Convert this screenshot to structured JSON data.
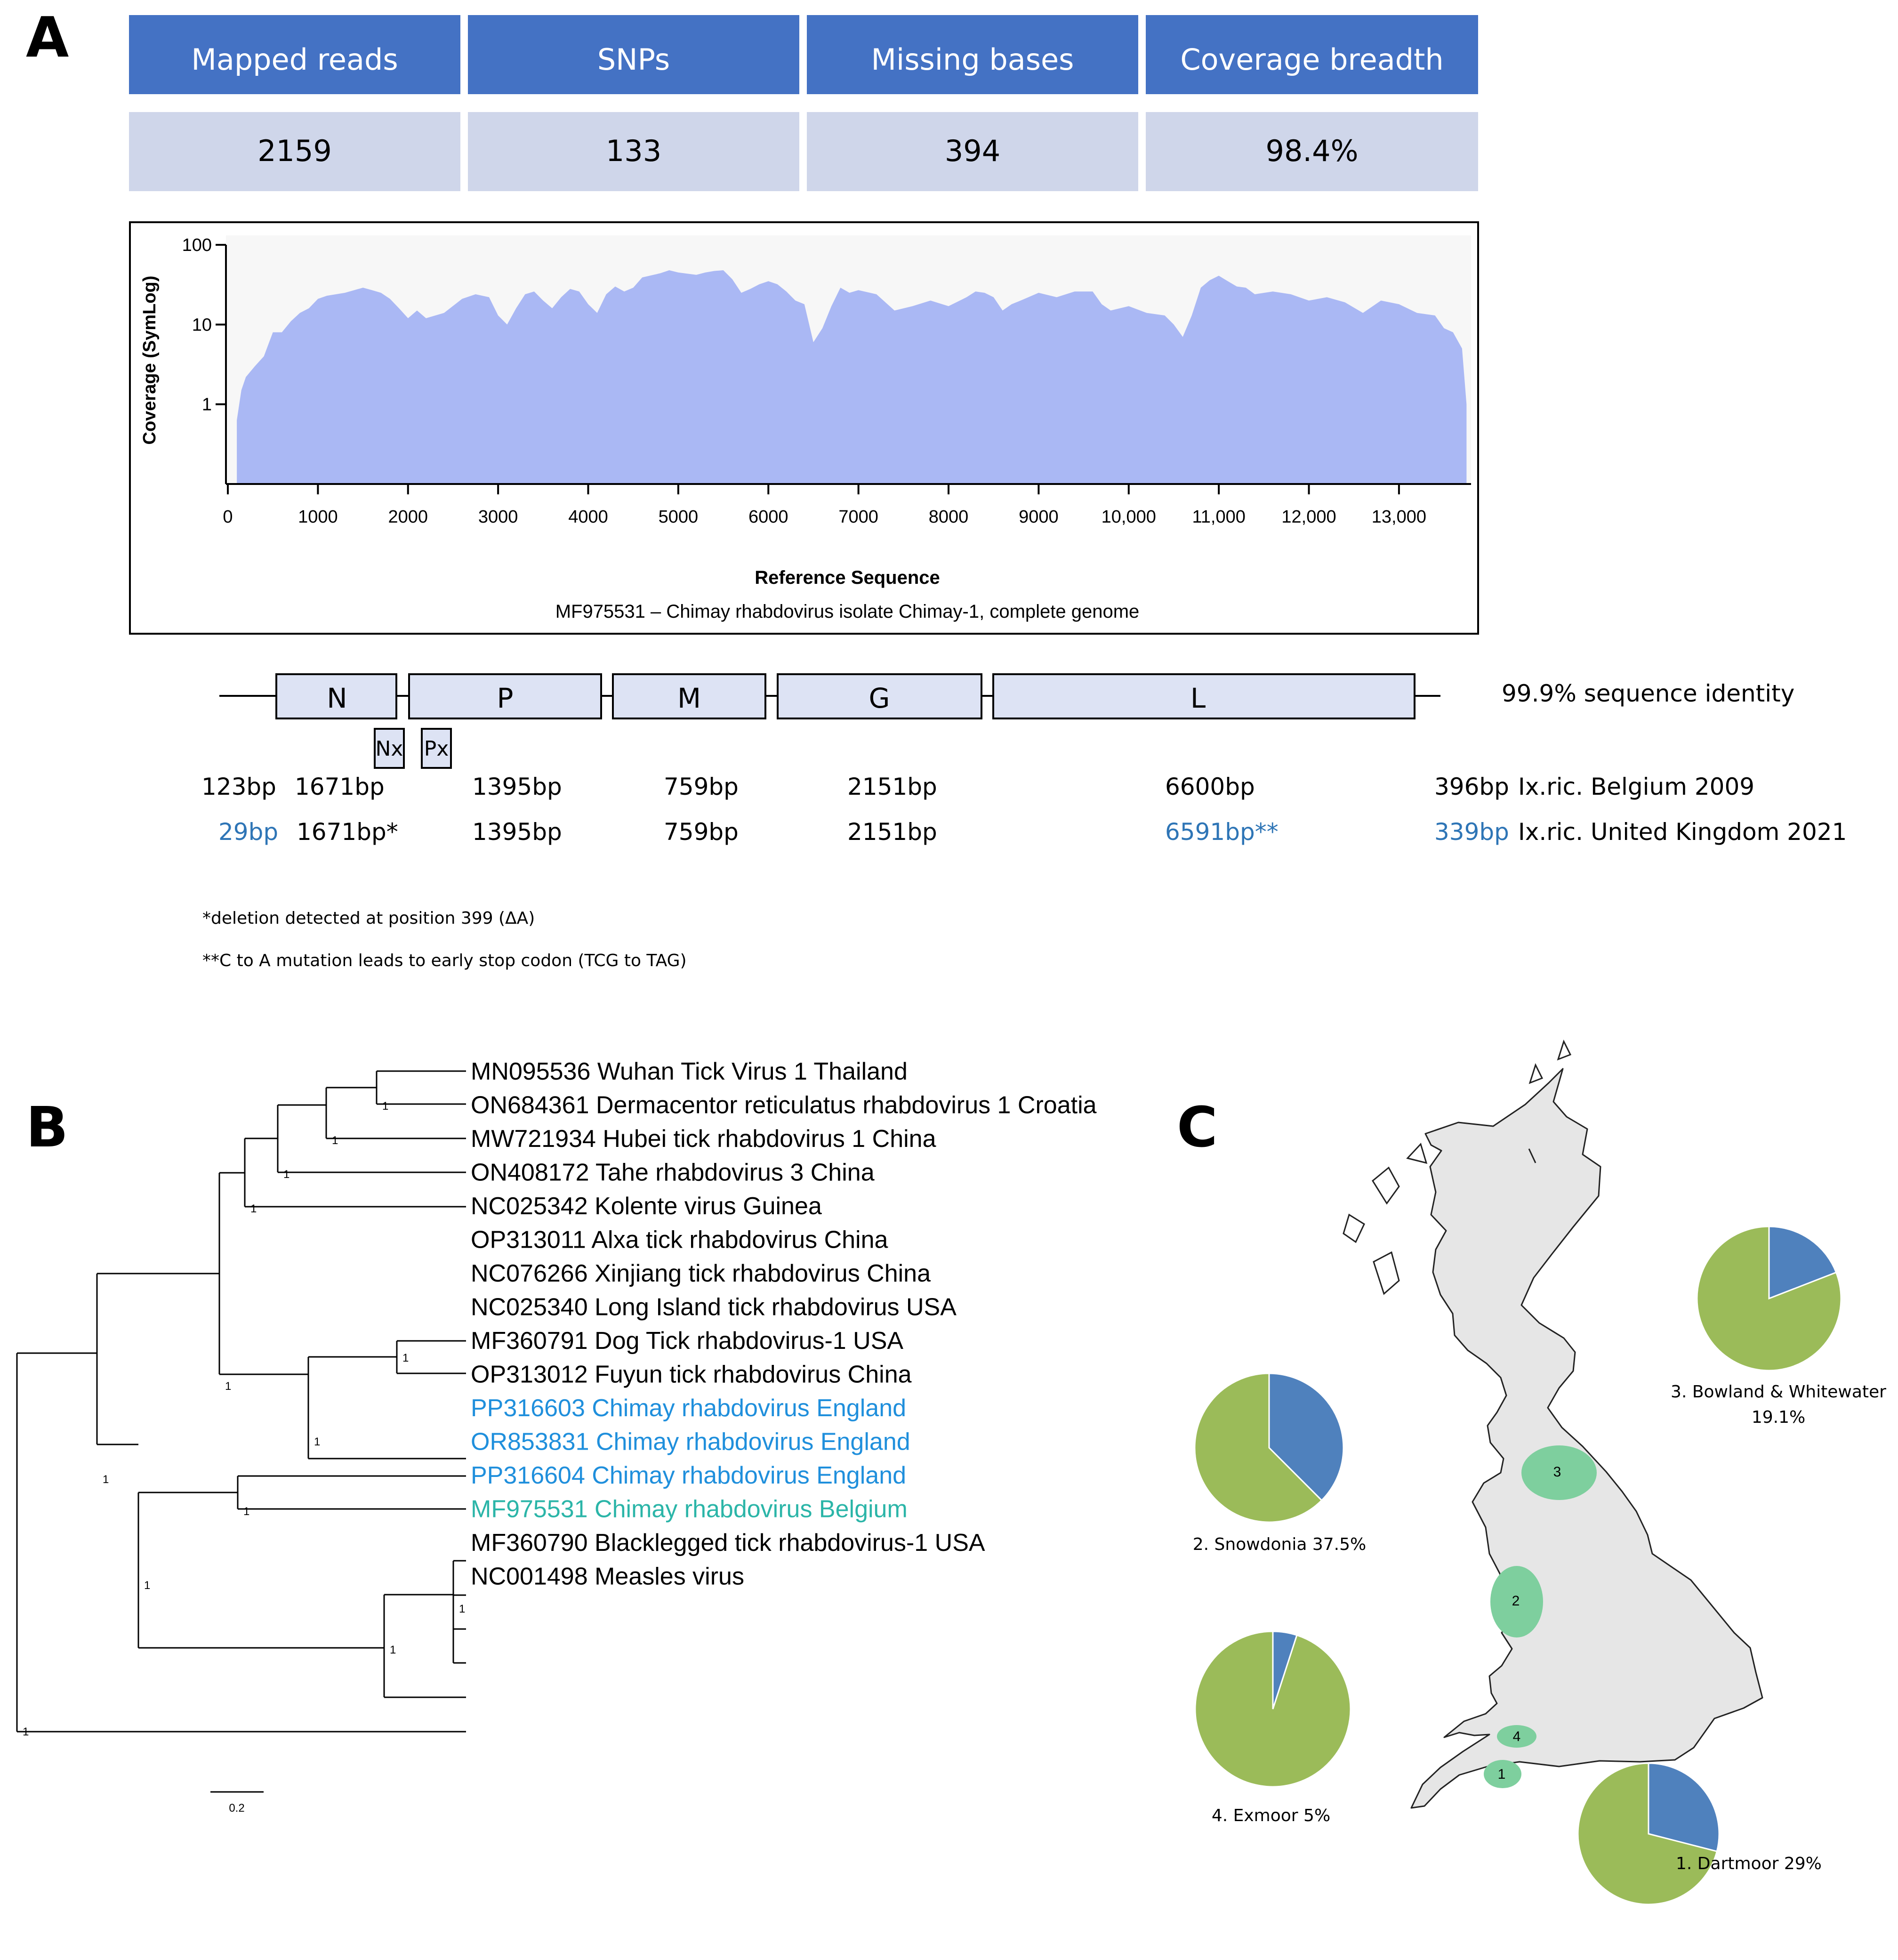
{
  "panels": {
    "a": "A",
    "b": "B",
    "c": "C"
  },
  "stats": {
    "headers": [
      "Mapped reads",
      "SNPs",
      "Missing bases",
      "Coverage breadth"
    ],
    "values": [
      "2159",
      "133",
      "394",
      "98.4%"
    ],
    "header_color": "#4472c4",
    "value_color": "#cfd6ea"
  },
  "chart_data": [
    {
      "type": "area",
      "title": "MF975531 – Chimay rhabdovirus isolate Chimay-1, complete genome",
      "xlabel": "Reference Sequence",
      "ylabel": "Coverage (SymLog)",
      "xlim": [
        0,
        13800
      ],
      "ylim": [
        0,
        100
      ],
      "yscale": "symlog",
      "xticks": [
        0,
        1000,
        2000,
        3000,
        4000,
        5000,
        6000,
        7000,
        8000,
        9000,
        10000,
        11000,
        12000,
        13000
      ],
      "xtick_labels": [
        "0",
        "1000",
        "2000",
        "3000",
        "4000",
        "5000",
        "6000",
        "7000",
        "8000",
        "9000",
        "10,000",
        "11,000",
        "12,000",
        "13,000"
      ],
      "yticks": [
        1,
        10,
        100
      ],
      "ytick_labels": [
        "1",
        "10",
        "100"
      ],
      "fill_color": "#aab8f4",
      "series": [
        {
          "name": "coverage",
          "x": [
            100,
            150,
            200,
            300,
            400,
            500,
            600,
            700,
            800,
            900,
            1000,
            1100,
            1300,
            1500,
            1600,
            1700,
            1800,
            1900,
            2000,
            2100,
            2200,
            2400,
            2600,
            2750,
            2900,
            3000,
            3100,
            3200,
            3300,
            3400,
            3500,
            3600,
            3700,
            3800,
            3900,
            4000,
            4100,
            4200,
            4300,
            4400,
            4500,
            4600,
            4800,
            4900,
            5000,
            5200,
            5300,
            5400,
            5500,
            5600,
            5700,
            5800,
            5900,
            6000,
            6100,
            6200,
            6300,
            6400,
            6500,
            6600,
            6700,
            6800,
            6900,
            7000,
            7200,
            7400,
            7600,
            7800,
            8000,
            8200,
            8300,
            8400,
            8500,
            8600,
            8700,
            8800,
            9000,
            9200,
            9400,
            9600,
            9700,
            9800,
            10000,
            10200,
            10400,
            10500,
            10600,
            10700,
            10800,
            10900,
            11000,
            11100,
            11200,
            11300,
            11400,
            11600,
            11800,
            12000,
            12200,
            12400,
            12600,
            12800,
            13000,
            13200,
            13400,
            13500,
            13600,
            13700,
            13750
          ],
          "values": [
            0.8,
            1.5,
            2.2,
            3,
            4,
            8,
            8,
            11,
            14,
            16,
            21,
            23,
            25,
            29,
            27,
            25,
            21,
            16,
            12,
            15,
            12,
            14,
            21,
            24,
            22,
            13,
            10,
            16,
            24,
            26,
            20,
            16,
            22,
            28,
            26,
            18,
            14,
            24,
            30,
            26,
            29,
            39,
            44,
            48,
            45,
            42,
            45,
            47,
            48,
            37,
            25,
            28,
            32,
            35,
            32,
            26,
            20,
            18,
            6,
            9,
            17,
            29,
            25,
            27,
            24,
            15,
            17,
            20,
            17,
            22,
            26,
            25,
            22,
            15,
            18,
            20,
            25,
            22,
            26,
            26,
            18,
            15,
            17,
            14,
            13,
            10,
            7,
            13,
            29,
            36,
            41,
            35,
            30,
            29,
            24,
            26,
            24,
            20,
            22,
            19,
            14,
            20,
            18,
            14,
            13,
            9,
            8,
            5,
            1
          ]
        }
      ]
    },
    {
      "type": "pie",
      "title": "1. Dartmoor 29%",
      "categories": [
        "positive",
        "negative"
      ],
      "values": [
        29,
        71
      ],
      "colors": [
        "#4f81bd",
        "#9bbb59"
      ]
    },
    {
      "type": "pie",
      "title": "2. Snowdonia 37.5%",
      "categories": [
        "positive",
        "negative"
      ],
      "values": [
        37.5,
        62.5
      ],
      "colors": [
        "#4f81bd",
        "#9bbb59"
      ]
    },
    {
      "type": "pie",
      "title": "3. Bowland & Whitewater 19.1%",
      "categories": [
        "positive",
        "negative"
      ],
      "values": [
        19.1,
        80.9
      ],
      "colors": [
        "#4f81bd",
        "#9bbb59"
      ]
    },
    {
      "type": "pie",
      "title": "4. Exmoor 5%",
      "categories": [
        "positive",
        "negative"
      ],
      "values": [
        5,
        95
      ],
      "colors": [
        "#4f81bd",
        "#9bbb59"
      ]
    }
  ],
  "coverage_box": {
    "xlabel": "Reference Sequence",
    "caption": "MF975531 – Chimay rhabdovirus isolate Chimay-1, complete genome"
  },
  "genome": {
    "genes": [
      "N",
      "P",
      "M",
      "G",
      "L"
    ],
    "small_genes": [
      "Nx",
      "Px"
    ],
    "identity": "99.9% sequence identity",
    "box_color": "#dde3f4",
    "row1": {
      "items": [
        "123bp",
        "1671bp",
        "1395bp",
        "759bp",
        "2151bp",
        "6600bp",
        "396bp"
      ],
      "label": "Ix.ric. Belgium 2009"
    },
    "row2": {
      "items": [
        "29bp",
        "1671bp*",
        "1395bp",
        "759bp",
        "2151bp",
        "6591bp**",
        "339bp"
      ],
      "label": "Ix.ric. United Kingdom 2021"
    },
    "highlight_color": "#2e75b6",
    "footnote1": "*deletion detected at position 399 (ΔA)",
    "footnote2": "**C to A mutation leads to early stop codon (TCG to TAG)"
  },
  "tree": {
    "taxa": [
      "MN095536 Wuhan Tick Virus 1 Thailand",
      "ON684361 Dermacentor reticulatus rhabdovirus 1 Croatia",
      "MW721934 Hubei tick rhabdovirus 1 China",
      "ON408172 Tahe rhabdovirus 3 China",
      "NC025342 Kolente virus Guinea",
      "OP313011 Alxa tick rhabdovirus China",
      "NC076266 Xinjiang tick rhabdovirus China",
      "NC025340 Long Island tick rhabdovirus USA",
      "MF360791 Dog Tick rhabdovirus-1 USA",
      "OP313012 Fuyun tick rhabdovirus China",
      "PP316603 Chimay rhabdovirus England",
      "OR853831 Chimay rhabdovirus England",
      "PP316604 Chimay rhabdovirus England",
      "MF975531 Chimay rhabdovirus Belgium",
      "MF360790 Blacklegged tick rhabdovirus-1 USA",
      "NC001498 Measles virus"
    ],
    "taxa_colors": [
      "#000000",
      "#000000",
      "#000000",
      "#000000",
      "#000000",
      "#000000",
      "#000000",
      "#000000",
      "#000000",
      "#000000",
      "#1f8fdc",
      "#1f8fdc",
      "#1f8fdc",
      "#2bb5a8",
      "#000000",
      "#000000"
    ],
    "support": "1",
    "scale": "0.2"
  },
  "map": {
    "sites": [
      "1",
      "2",
      "3",
      "4"
    ],
    "land_color": "#e6e6e6",
    "site_color": "#7ecf9e",
    "labels": [
      "1. Dartmoor 29%",
      "2. Snowdonia 37.5%",
      "3. Bowland & Whitewater",
      "19.1%",
      "4. Exmoor 5%"
    ]
  }
}
